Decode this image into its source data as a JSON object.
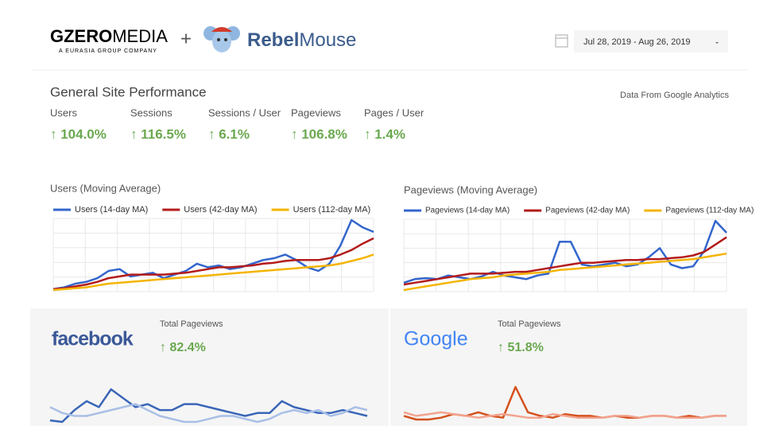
{
  "header": {
    "brand": "GZEROMEDIA",
    "brand_bold": "GZERO",
    "brand_light": "MEDIA",
    "brand_tagline": "A EURASIA GROUP COMPANY",
    "plus": "+",
    "partner_bold": "Rebel",
    "partner_light": "Mouse",
    "date_range": "Jul 28, 2019 - Aug 26, 2019"
  },
  "section": {
    "title": "General Site Performance",
    "source": "Data From Google Analytics"
  },
  "kpis": [
    {
      "label": "Users",
      "value": "↑ 104.0%"
    },
    {
      "label": "Sessions",
      "value": "↑ 116.5%"
    },
    {
      "label": "Sessions / User",
      "value": "↑ 6.1%"
    },
    {
      "label": "Pageviews",
      "value": "↑ 106.8%"
    },
    {
      "label": "Pages / User",
      "value": "↑ 1.4%"
    }
  ],
  "panels": [
    {
      "logo": "facebook",
      "label": "Total Pageviews",
      "value": "↑ 82.4%"
    },
    {
      "logo": "Google",
      "label": "Total Pageviews",
      "value": "↑ 51.8%"
    }
  ],
  "chart_data": [
    {
      "type": "line",
      "title": "Users (Moving Average)",
      "grid": true,
      "series": [
        {
          "name": "Users (14-day MA)",
          "color": "#3366cc",
          "values": [
            2,
            4,
            8,
            10,
            14,
            22,
            24,
            16,
            18,
            20,
            14,
            18,
            22,
            30,
            26,
            28,
            24,
            26,
            30,
            34,
            36,
            40,
            34,
            26,
            22,
            30,
            50,
            78,
            70,
            65
          ]
        },
        {
          "name": "Users (42-day MA)",
          "color": "#b31b1b",
          "values": [
            2,
            3,
            5,
            7,
            10,
            14,
            16,
            18,
            18,
            18,
            18,
            19,
            20,
            22,
            24,
            26,
            26,
            27,
            28,
            30,
            31,
            33,
            34,
            34,
            34,
            36,
            40,
            45,
            52,
            58
          ]
        },
        {
          "name": "Users (112-day MA)",
          "color": "#f4b400",
          "values": [
            1,
            2,
            3,
            4,
            6,
            8,
            9,
            10,
            11,
            12,
            13,
            14,
            15,
            16,
            17,
            18,
            19,
            20,
            21,
            22,
            23,
            24,
            25,
            26,
            27,
            28,
            30,
            33,
            36,
            40
          ]
        }
      ]
    },
    {
      "type": "line",
      "title": "Pageviews (Moving Average)",
      "grid": true,
      "series": [
        {
          "name": "Pageviews (14-day MA)",
          "color": "#3366cc",
          "values": [
            10,
            14,
            15,
            14,
            18,
            16,
            14,
            17,
            22,
            18,
            16,
            14,
            18,
            20,
            55,
            55,
            30,
            28,
            30,
            32,
            28,
            30,
            38,
            48,
            30,
            26,
            28,
            45,
            78,
            65
          ]
        },
        {
          "name": "Pageviews (42-day MA)",
          "color": "#b31b1b",
          "values": [
            8,
            10,
            12,
            14,
            16,
            18,
            20,
            20,
            20,
            21,
            22,
            22,
            24,
            26,
            28,
            30,
            32,
            32,
            33,
            34,
            35,
            35,
            36,
            36,
            37,
            38,
            40,
            44,
            52,
            60
          ]
        },
        {
          "name": "Pageviews (112-day MA)",
          "color": "#f4b400",
          "values": [
            2,
            4,
            6,
            8,
            10,
            12,
            14,
            15,
            16,
            18,
            19,
            20,
            21,
            22,
            24,
            25,
            26,
            27,
            28,
            29,
            30,
            31,
            32,
            33,
            34,
            35,
            36,
            38,
            40,
            42
          ]
        }
      ]
    },
    {
      "type": "line",
      "grid": false,
      "series": [
        {
          "color": "#3a66b8",
          "values": [
            5,
            4,
            12,
            18,
            14,
            26,
            20,
            14,
            16,
            12,
            12,
            16,
            16,
            14,
            12,
            10,
            8,
            10,
            10,
            18,
            14,
            12,
            10,
            10,
            12,
            10,
            8
          ]
        },
        {
          "color": "#a9bfe6",
          "values": [
            14,
            10,
            8,
            8,
            10,
            12,
            14,
            16,
            12,
            8,
            6,
            4,
            4,
            6,
            8,
            8,
            6,
            4,
            6,
            10,
            12,
            10,
            12,
            8,
            10,
            14,
            12
          ]
        }
      ]
    },
    {
      "type": "line",
      "grid": false,
      "series": [
        {
          "color": "#d4511e",
          "values": [
            8,
            4,
            4,
            6,
            10,
            8,
            12,
            8,
            6,
            40,
            12,
            8,
            6,
            10,
            8,
            8,
            6,
            8,
            6,
            6,
            8,
            8,
            6,
            8,
            6,
            8,
            8
          ]
        },
        {
          "color": "#f2a48f",
          "values": [
            12,
            8,
            10,
            12,
            10,
            8,
            6,
            8,
            10,
            8,
            6,
            6,
            10,
            8,
            6,
            6,
            6,
            8,
            8,
            6,
            8,
            8,
            6,
            6,
            6,
            8,
            8
          ]
        }
      ]
    }
  ]
}
